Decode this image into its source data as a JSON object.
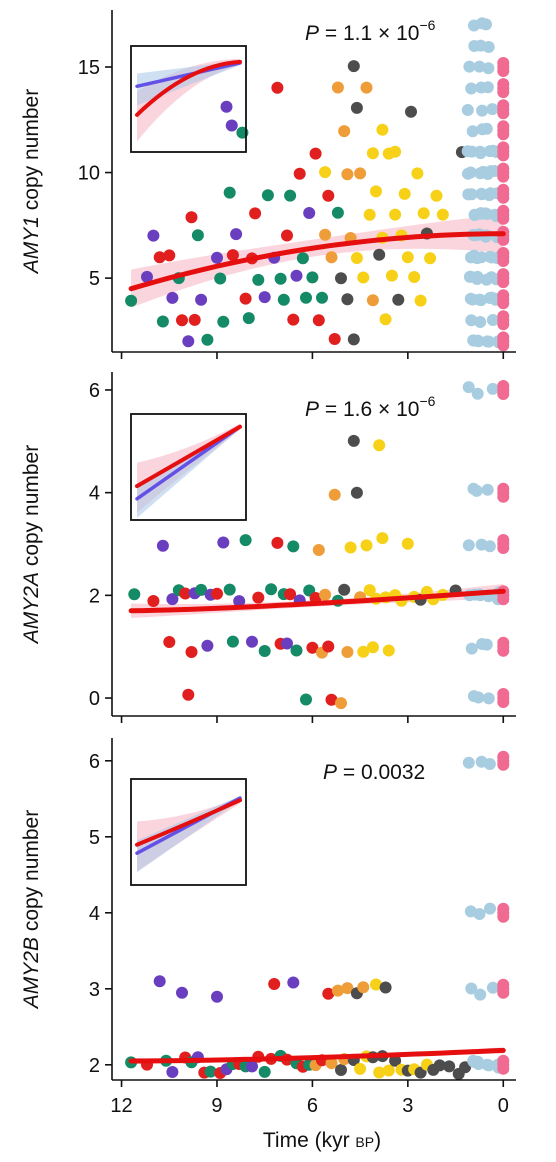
{
  "x_axis": {
    "label_main": "Time (kyr ",
    "label_bp": "BP",
    "label_close": ")",
    "ticks": [
      12,
      9,
      6,
      3,
      0
    ],
    "tick_labels": [
      "12",
      "9",
      "6",
      "3",
      "0"
    ],
    "xlim": [
      12.3,
      -0.4
    ]
  },
  "group_colors": {
    "hunter_gatherers_early": "#6a3fbf",
    "group_red": "#e11f1f",
    "group_green": "#148a66",
    "group_orange": "#ee9d38",
    "group_dark": "#4d4d4d",
    "group_yellow": "#f7d117",
    "present_day_blue": "#a9cde0",
    "present_day_pink": "#f06a92"
  },
  "fit_colors": {
    "main": "#e60f0f",
    "band": "#f6b9c8",
    "blue_fit": "#6350e6",
    "blue_band": "#a8c6e8"
  },
  "chart_data": [
    {
      "type": "scatter",
      "gene": "AMY1",
      "ylabel_gene": "AMY1",
      "ylabel_rest": " copy number",
      "pvalue": {
        "prefix": "P",
        "text": " = 1.1 × 10",
        "exponent": "−6"
      },
      "ylim": [
        1.5,
        17.7
      ],
      "yticks": [
        5,
        10,
        15
      ],
      "ytick_labels": [
        "5",
        "10",
        "15"
      ],
      "points": [
        [
          11.7,
          4,
          "green"
        ],
        [
          11.2,
          5,
          "purple"
        ],
        [
          11.0,
          7,
          "purple"
        ],
        [
          10.8,
          6,
          "red"
        ],
        [
          10.7,
          3,
          "green"
        ],
        [
          10.5,
          6,
          "red"
        ],
        [
          10.4,
          4,
          "purple"
        ],
        [
          10.2,
          5,
          "green"
        ],
        [
          10.1,
          3,
          "red"
        ],
        [
          9.9,
          2,
          "purple"
        ],
        [
          9.8,
          8,
          "red"
        ],
        [
          9.7,
          3,
          "red"
        ],
        [
          9.6,
          7,
          "green"
        ],
        [
          9.5,
          4,
          "purple"
        ],
        [
          9.3,
          2,
          "green"
        ],
        [
          9.0,
          6,
          "purple"
        ],
        [
          8.9,
          5,
          "green"
        ],
        [
          8.8,
          3,
          "green"
        ],
        [
          8.7,
          13,
          "purple"
        ],
        [
          8.6,
          9,
          "green"
        ],
        [
          8.5,
          6,
          "red"
        ],
        [
          8.4,
          7,
          "purple"
        ],
        [
          8.2,
          12,
          "green"
        ],
        [
          8.1,
          4,
          "red"
        ],
        [
          8.0,
          3,
          "green"
        ],
        [
          7.9,
          6,
          "red"
        ],
        [
          7.8,
          8,
          "red"
        ],
        [
          7.7,
          5,
          "green"
        ],
        [
          7.5,
          4,
          "purple"
        ],
        [
          7.4,
          9,
          "green"
        ],
        [
          7.2,
          6,
          "purple"
        ],
        [
          7.1,
          14,
          "red"
        ],
        [
          7.0,
          5,
          "green"
        ],
        [
          6.9,
          4,
          "green"
        ],
        [
          6.8,
          7,
          "red"
        ],
        [
          6.7,
          9,
          "green"
        ],
        [
          6.6,
          3,
          "red"
        ],
        [
          6.5,
          5,
          "purple"
        ],
        [
          6.4,
          10,
          "red"
        ],
        [
          6.3,
          6,
          "green"
        ],
        [
          6.2,
          4,
          "green"
        ],
        [
          6.1,
          8,
          "purple"
        ],
        [
          6.0,
          5,
          "green"
        ],
        [
          5.9,
          11,
          "red"
        ],
        [
          5.8,
          3,
          "red"
        ],
        [
          5.7,
          4,
          "green"
        ],
        [
          5.6,
          7,
          "orange"
        ],
        [
          5.5,
          9,
          "red"
        ],
        [
          5.4,
          6,
          "orange"
        ],
        [
          5.3,
          2,
          "red"
        ],
        [
          5.2,
          8,
          "green"
        ],
        [
          5.1,
          5,
          "dark"
        ],
        [
          5.0,
          12,
          "orange"
        ],
        [
          4.9,
          4,
          "dark"
        ],
        [
          4.8,
          7,
          "orange"
        ],
        [
          4.7,
          2,
          "dark"
        ],
        [
          4.6,
          6,
          "yellow"
        ],
        [
          4.5,
          10,
          "orange"
        ],
        [
          4.4,
          5,
          "yellow"
        ],
        [
          4.3,
          14,
          "orange"
        ],
        [
          4.2,
          8,
          "yellow"
        ],
        [
          4.1,
          4,
          "orange"
        ],
        [
          4.0,
          9,
          "yellow"
        ],
        [
          3.9,
          6,
          "dark"
        ],
        [
          3.8,
          7,
          "yellow"
        ],
        [
          3.7,
          3,
          "yellow"
        ],
        [
          3.6,
          11,
          "yellow"
        ],
        [
          3.5,
          5,
          "yellow"
        ],
        [
          3.4,
          8,
          "yellow"
        ],
        [
          3.3,
          4,
          "dark"
        ],
        [
          3.2,
          7,
          "yellow"
        ],
        [
          3.1,
          9,
          "yellow"
        ],
        [
          3.0,
          6,
          "yellow"
        ],
        [
          2.9,
          13,
          "dark"
        ],
        [
          2.8,
          5,
          "yellow"
        ],
        [
          2.7,
          10,
          "yellow"
        ],
        [
          2.6,
          4,
          "yellow"
        ],
        [
          2.5,
          8,
          "yellow"
        ],
        [
          2.4,
          7,
          "dark"
        ],
        [
          2.3,
          6,
          "yellow"
        ],
        [
          2.1,
          9,
          "yellow"
        ],
        [
          1.9,
          8,
          "yellow"
        ],
        [
          1.3,
          11,
          "dark"
        ],
        [
          4.7,
          15,
          "dark"
        ],
        [
          4.6,
          13,
          "dark"
        ],
        [
          5.2,
          14,
          "orange"
        ],
        [
          3.8,
          12,
          "yellow"
        ],
        [
          4.1,
          11,
          "yellow"
        ],
        [
          3.4,
          11,
          "yellow"
        ],
        [
          5.6,
          10,
          "yellow"
        ],
        [
          4.9,
          10,
          "orange"
        ]
      ],
      "inset": {
        "ylim": [
          0,
          1
        ],
        "blue_start": 0.62,
        "blue_end": 0.84,
        "red_start": 0.35,
        "red_mid": 0.82,
        "red_end": 0.85,
        "point_y": 0.25
      }
    },
    {
      "type": "scatter",
      "gene": "AMY2A",
      "ylabel_gene": "AMY2A",
      "ylabel_rest": " copy number",
      "pvalue": {
        "prefix": "P",
        "text": " = 1.6 × 10",
        "exponent": "−6"
      },
      "ylim": [
        -0.35,
        6.35
      ],
      "yticks": [
        0,
        2,
        4,
        6
      ],
      "ytick_labels": [
        "0",
        "2",
        "4",
        "6"
      ],
      "points": [
        [
          11.6,
          2,
          "green"
        ],
        [
          11.0,
          2,
          "red"
        ],
        [
          10.7,
          3,
          "purple"
        ],
        [
          10.5,
          1,
          "red"
        ],
        [
          10.4,
          2,
          "purple"
        ],
        [
          10.2,
          2,
          "green"
        ],
        [
          10.0,
          2,
          "red"
        ],
        [
          9.9,
          0,
          "red"
        ],
        [
          9.8,
          1,
          "red"
        ],
        [
          9.7,
          2,
          "purple"
        ],
        [
          9.5,
          2,
          "green"
        ],
        [
          9.3,
          1,
          "purple"
        ],
        [
          9.2,
          2,
          "purple"
        ],
        [
          9.0,
          2,
          "red"
        ],
        [
          8.8,
          3,
          "purple"
        ],
        [
          8.6,
          2,
          "green"
        ],
        [
          8.5,
          1,
          "green"
        ],
        [
          8.3,
          2,
          "purple"
        ],
        [
          8.1,
          3,
          "green"
        ],
        [
          7.9,
          1,
          "purple"
        ],
        [
          7.7,
          2,
          "red"
        ],
        [
          7.5,
          1,
          "green"
        ],
        [
          7.3,
          2,
          "green"
        ],
        [
          7.1,
          3,
          "red"
        ],
        [
          7.0,
          1,
          "red"
        ],
        [
          6.9,
          2,
          "green"
        ],
        [
          6.8,
          1,
          "purple"
        ],
        [
          6.7,
          2,
          "red"
        ],
        [
          6.6,
          3,
          "green"
        ],
        [
          6.5,
          1,
          "green"
        ],
        [
          6.4,
          2,
          "purple"
        ],
        [
          6.2,
          0,
          "green"
        ],
        [
          6.1,
          2,
          "green"
        ],
        [
          6.0,
          1,
          "red"
        ],
        [
          5.9,
          2,
          "red"
        ],
        [
          5.8,
          3,
          "orange"
        ],
        [
          5.7,
          1,
          "orange"
        ],
        [
          5.6,
          2,
          "orange"
        ],
        [
          5.5,
          1,
          "red"
        ],
        [
          5.4,
          0,
          "red"
        ],
        [
          5.3,
          4,
          "orange"
        ],
        [
          5.2,
          2,
          "green"
        ],
        [
          5.1,
          0,
          "orange"
        ],
        [
          5.0,
          2,
          "dark"
        ],
        [
          4.9,
          1,
          "orange"
        ],
        [
          4.8,
          3,
          "yellow"
        ],
        [
          4.7,
          5,
          "dark"
        ],
        [
          4.6,
          4,
          "dark"
        ],
        [
          4.5,
          2,
          "orange"
        ],
        [
          4.4,
          1,
          "yellow"
        ],
        [
          4.3,
          3,
          "yellow"
        ],
        [
          4.2,
          2,
          "yellow"
        ],
        [
          4.1,
          1,
          "yellow"
        ],
        [
          4.0,
          2,
          "yellow"
        ],
        [
          3.9,
          5,
          "yellow"
        ],
        [
          3.8,
          3,
          "yellow"
        ],
        [
          3.7,
          2,
          "yellow"
        ],
        [
          3.6,
          1,
          "yellow"
        ],
        [
          3.4,
          2,
          "yellow"
        ],
        [
          3.2,
          2,
          "yellow"
        ],
        [
          3.0,
          3,
          "yellow"
        ],
        [
          2.8,
          2,
          "yellow"
        ],
        [
          2.6,
          2,
          "dark"
        ],
        [
          2.4,
          2,
          "yellow"
        ],
        [
          2.2,
          2,
          "yellow"
        ],
        [
          1.9,
          2,
          "yellow"
        ],
        [
          1.5,
          2,
          "dark"
        ]
      ],
      "inset": {
        "ylim": [
          0,
          1
        ],
        "blue_start": 0.2,
        "blue_end": 0.88,
        "red_start": 0.32,
        "red_mid": 0.6,
        "red_end": 0.88
      }
    },
    {
      "type": "scatter",
      "gene": "AMY2B",
      "ylabel_gene": "AMY2B",
      "ylabel_rest": " copy number",
      "pvalue": {
        "prefix": "P",
        "text": " = 0.0032",
        "exponent": ""
      },
      "ylim": [
        1.8,
        6.3
      ],
      "yticks": [
        2,
        3,
        4,
        5,
        6
      ],
      "ytick_labels": [
        "2",
        "3",
        "4",
        "5",
        "6"
      ],
      "points": [
        [
          11.7,
          2,
          "green"
        ],
        [
          11.2,
          2,
          "red"
        ],
        [
          10.8,
          3,
          "purple"
        ],
        [
          10.6,
          2,
          "green"
        ],
        [
          10.4,
          2,
          "purple"
        ],
        [
          10.1,
          3,
          "purple"
        ],
        [
          10.0,
          2,
          "red"
        ],
        [
          9.8,
          2,
          "green"
        ],
        [
          9.6,
          2,
          "purple"
        ],
        [
          9.4,
          2,
          "red"
        ],
        [
          9.2,
          2,
          "green"
        ],
        [
          9.0,
          3,
          "purple"
        ],
        [
          8.9,
          2,
          "red"
        ],
        [
          8.7,
          2,
          "purple"
        ],
        [
          8.5,
          2,
          "green"
        ],
        [
          8.3,
          2,
          "red"
        ],
        [
          8.1,
          2,
          "green"
        ],
        [
          7.9,
          2,
          "purple"
        ],
        [
          7.7,
          2,
          "red"
        ],
        [
          7.5,
          2,
          "green"
        ],
        [
          7.3,
          2,
          "red"
        ],
        [
          7.2,
          3,
          "red"
        ],
        [
          7.0,
          2,
          "green"
        ],
        [
          6.8,
          2,
          "red"
        ],
        [
          6.6,
          3,
          "purple"
        ],
        [
          6.5,
          2,
          "green"
        ],
        [
          6.3,
          2,
          "red"
        ],
        [
          6.1,
          2,
          "green"
        ],
        [
          5.9,
          2,
          "orange"
        ],
        [
          5.7,
          2,
          "red"
        ],
        [
          5.5,
          3,
          "red"
        ],
        [
          5.4,
          2,
          "orange"
        ],
        [
          5.2,
          3,
          "orange"
        ],
        [
          5.1,
          2,
          "dark"
        ],
        [
          5.0,
          2,
          "orange"
        ],
        [
          4.9,
          3,
          "orange"
        ],
        [
          4.7,
          2,
          "dark"
        ],
        [
          4.6,
          3,
          "dark"
        ],
        [
          4.5,
          2,
          "yellow"
        ],
        [
          4.4,
          3,
          "orange"
        ],
        [
          4.3,
          2,
          "yellow"
        ],
        [
          4.1,
          2,
          "dark"
        ],
        [
          4.0,
          3,
          "yellow"
        ],
        [
          3.9,
          2,
          "yellow"
        ],
        [
          3.8,
          2,
          "dark"
        ],
        [
          3.7,
          3,
          "dark"
        ],
        [
          3.6,
          2,
          "yellow"
        ],
        [
          3.4,
          2,
          "dark"
        ],
        [
          3.2,
          2,
          "yellow"
        ],
        [
          3.0,
          2,
          "dark"
        ],
        [
          2.8,
          2,
          "yellow"
        ],
        [
          2.6,
          2,
          "dark"
        ],
        [
          2.4,
          2,
          "yellow"
        ],
        [
          2.2,
          2,
          "dark"
        ],
        [
          2.0,
          2,
          "dark"
        ],
        [
          1.7,
          2,
          "dark"
        ],
        [
          1.4,
          2,
          "dark"
        ],
        [
          1.2,
          2,
          "dark"
        ]
      ],
      "inset": {
        "ylim": [
          0,
          1
        ],
        "blue_start": 0.3,
        "blue_end": 0.82,
        "red_start": 0.38,
        "red_mid": 0.58,
        "red_end": 0.8
      }
    }
  ]
}
